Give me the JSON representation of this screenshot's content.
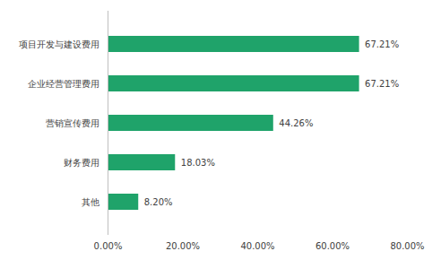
{
  "chart_data": {
    "type": "bar",
    "orientation": "horizontal",
    "categories": [
      "项目开发与建设费用",
      "企业经营管理费用",
      "营销宣传费用",
      "财务费用",
      "其他"
    ],
    "values": [
      67.21,
      67.21,
      44.26,
      18.03,
      8.2
    ],
    "value_labels": [
      "67.21%",
      "67.21%",
      "44.26%",
      "18.03%",
      "8.20%"
    ],
    "data_labels": true,
    "color": "#1fa36a",
    "xlim": [
      0,
      80
    ],
    "xticks": [
      {
        "value": 0,
        "label": "0.00%"
      },
      {
        "value": 20,
        "label": "20.00%"
      },
      {
        "value": 40,
        "label": "40.00%"
      },
      {
        "value": 60,
        "label": "60.00%"
      },
      {
        "value": 80,
        "label": "80.00%"
      }
    ],
    "grid": false
  }
}
